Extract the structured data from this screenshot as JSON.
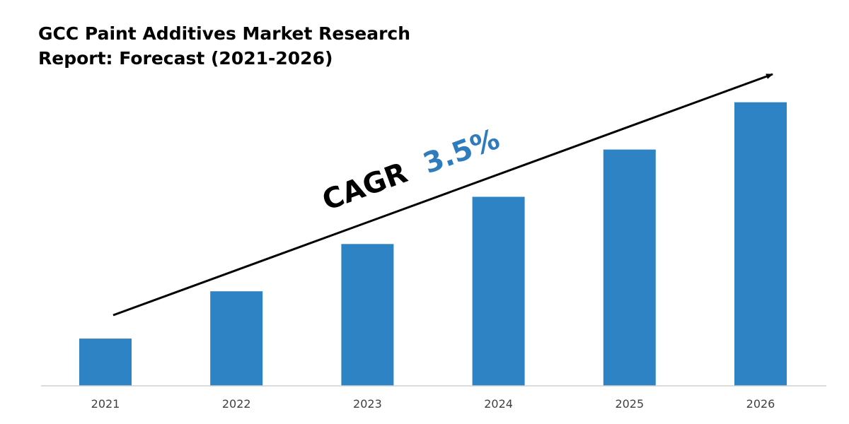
{
  "chart_data": {
    "type": "bar",
    "title": "GCC Paint Additives Market Research\nReport: Forecast (2021-2026)",
    "categories": [
      "2021",
      "2022",
      "2023",
      "2024",
      "2025",
      "2026"
    ],
    "values": [
      1,
      2,
      3,
      4,
      5,
      6
    ],
    "ylim": [
      0,
      6.1
    ],
    "xlabel": "",
    "ylabel": "",
    "grid": false,
    "legend": "none",
    "bar_color": "#2E83C5",
    "annotation": {
      "label": "CAGR",
      "value": "3.5%",
      "label_color": "#000000",
      "value_color": "#2E7BBE"
    }
  }
}
